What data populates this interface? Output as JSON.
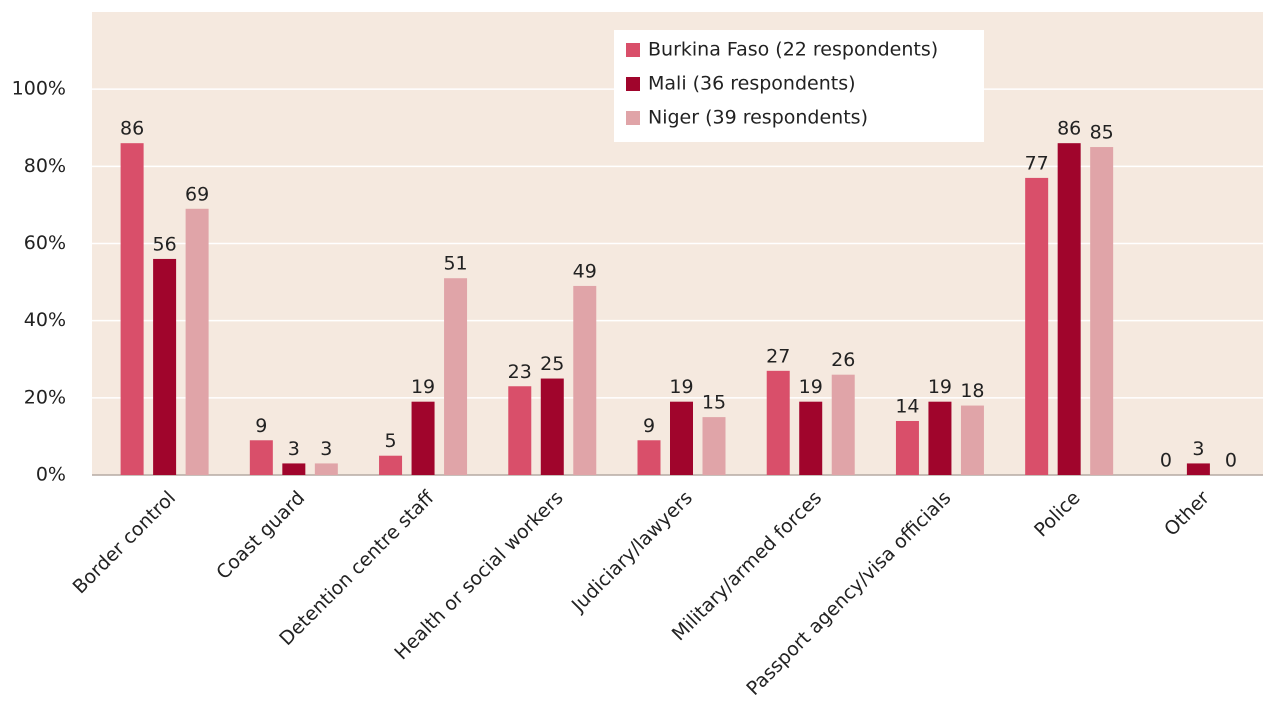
{
  "chart_data": {
    "type": "bar",
    "categories": [
      "Border control",
      "Coast guard",
      "Detention centre staff",
      "Health or social workers",
      "Judiciary/lawyers",
      "Military/armed forces",
      "Passport agency/visa officials",
      "Police",
      "Other"
    ],
    "series": [
      {
        "name": "Burkina Faso (22 respondents)",
        "color": "#d94f6a",
        "values": [
          86,
          9,
          5,
          23,
          9,
          27,
          14,
          77,
          0
        ]
      },
      {
        "name": "Mali (36 respondents)",
        "color": "#a0052c",
        "values": [
          56,
          3,
          19,
          25,
          19,
          19,
          19,
          86,
          3
        ]
      },
      {
        "name": "Niger (39 respondents)",
        "color": "#e0a4a8",
        "values": [
          69,
          3,
          51,
          49,
          15,
          26,
          18,
          85,
          0
        ]
      }
    ],
    "ylim": [
      0,
      120
    ],
    "yticks": [
      {
        "value": 0,
        "label": "0%"
      },
      {
        "value": 20,
        "label": "20%"
      },
      {
        "value": 40,
        "label": "40%"
      },
      {
        "value": 60,
        "label": "60%"
      },
      {
        "value": 80,
        "label": "80%"
      },
      {
        "value": 100,
        "label": "100%"
      }
    ],
    "grid": true
  }
}
